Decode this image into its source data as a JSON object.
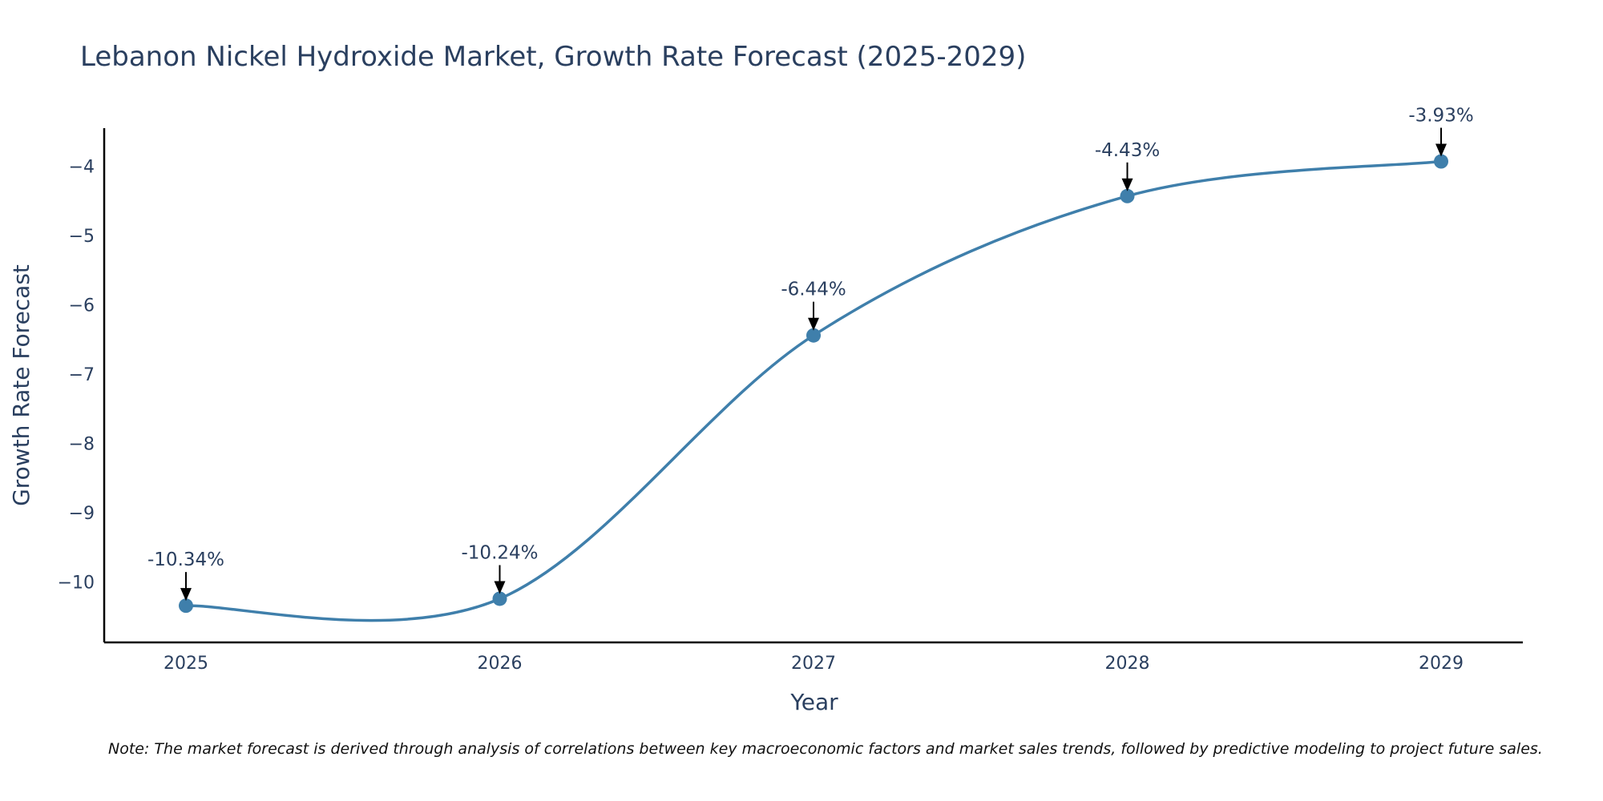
{
  "chart_data": {
    "type": "line",
    "title": "Lebanon Nickel Hydroxide Market, Growth Rate Forecast (2025-2029)",
    "xlabel": "Year",
    "ylabel": "Growth Rate Forecast",
    "categories": [
      "2025",
      "2026",
      "2027",
      "2028",
      "2029"
    ],
    "values": [
      -10.34,
      -10.24,
      -6.44,
      -4.43,
      -3.93
    ],
    "data_labels": [
      "-10.34%",
      "-10.24%",
      "-6.44%",
      "-4.43%",
      "-3.93%"
    ],
    "y_ticks": [
      -4,
      -5,
      -6,
      -7,
      -8,
      -9,
      -10
    ],
    "y_tick_labels": [
      "−4",
      "−5",
      "−6",
      "−7",
      "−8",
      "−9",
      "−10"
    ],
    "ylim": [
      -10.87,
      -3.45
    ],
    "grid": false,
    "line_shape": "spline",
    "line_color": "#3f7fab",
    "marker_color": "#3f7fab",
    "arrow_color": "#000000",
    "note": "Note: The market forecast is derived through analysis of correlations between key macroeconomic factors and market sales trends, followed by predictive modeling to project future sales."
  }
}
